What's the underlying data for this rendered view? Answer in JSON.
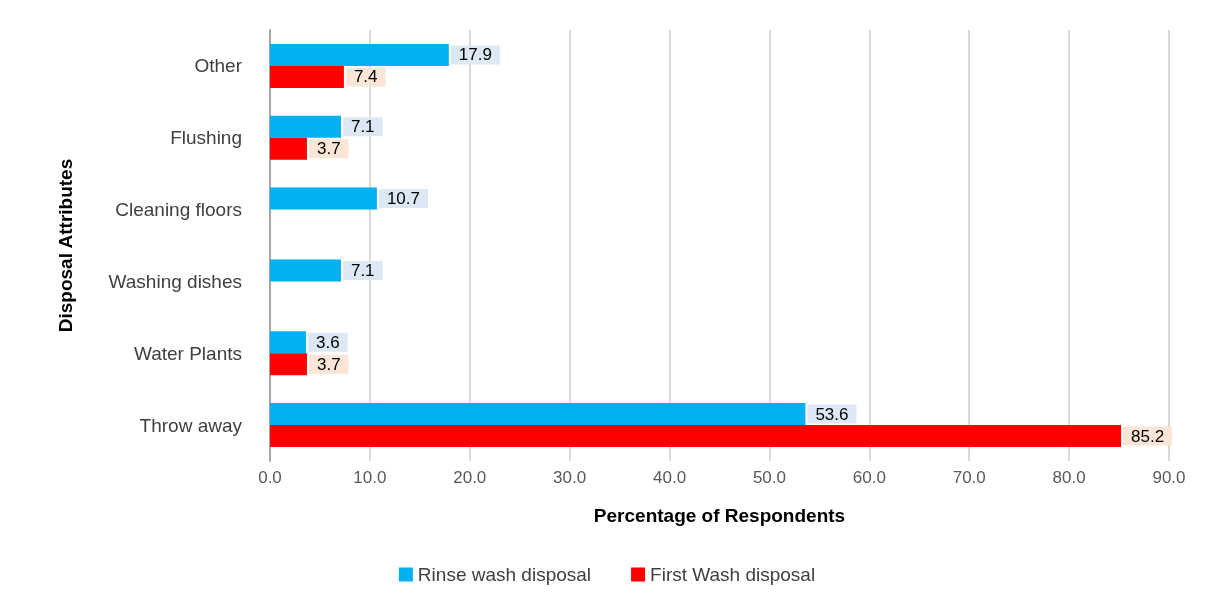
{
  "chart_data": {
    "type": "bar",
    "orientation": "horizontal",
    "xlabel": "Percentage of Respondents",
    "ylabel": "Disposal Attributes",
    "categories": [
      "Other",
      "Flushing",
      "Cleaning floors",
      "Washing dishes",
      "Water Plants",
      "Throw away"
    ],
    "series": [
      {
        "name": "Rinse wash disposal",
        "color": "#00b0f0",
        "values": [
          17.9,
          7.1,
          10.7,
          7.1,
          3.6,
          53.6
        ]
      },
      {
        "name": "First Wash disposal",
        "color": "#ff0000",
        "values": [
          7.4,
          3.7,
          null,
          null,
          3.7,
          85.2
        ]
      }
    ],
    "xlim": [
      0,
      90
    ],
    "xticks": [
      {
        "value": 0,
        "label": "0.0"
      },
      {
        "value": 10,
        "label": "10.0"
      },
      {
        "value": 20,
        "label": "20.0"
      },
      {
        "value": 30,
        "label": "30.0"
      },
      {
        "value": 40,
        "label": "40.0"
      },
      {
        "value": 50,
        "label": "50.0"
      },
      {
        "value": 60,
        "label": "60.0"
      },
      {
        "value": 70,
        "label": "70.0"
      },
      {
        "value": 80,
        "label": "80.0"
      },
      {
        "value": 90,
        "label": "90.0"
      }
    ],
    "grid": "x",
    "legend": "bottom",
    "data_labels": true
  }
}
